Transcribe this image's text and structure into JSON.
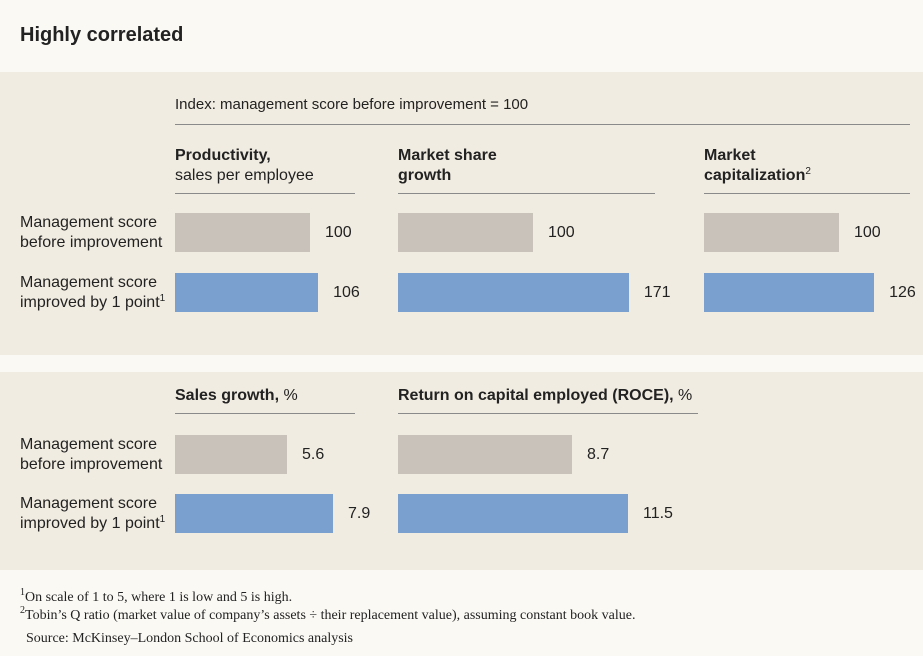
{
  "title": "Highly correlated",
  "subtitle": "Index: management score before improvement = 100",
  "footnotes": [
    {
      "mark": "1",
      "text": "On scale of 1 to 5, where 1 is low and 5 is high."
    },
    {
      "mark": "2",
      "text": "Tobin’s Q ratio (market value of company’s assets ÷ their replacement value), assuming constant book value."
    }
  ],
  "source": "Source: McKinsey–London School of Economics analysis",
  "chart_data": [
    {
      "type": "bar",
      "title": "Productivity,",
      "title_suffix": "sales per employee",
      "categories": [
        "Management score before improvement",
        "Management score improved by 1 point"
      ],
      "category_notes": [
        null,
        "1"
      ],
      "values": [
        100,
        106
      ],
      "colors": [
        "#c9c2bb",
        "#7aa0cf"
      ],
      "xlim": [
        0,
        200
      ]
    },
    {
      "type": "bar",
      "title": "Market share growth",
      "values": [
        100,
        171
      ],
      "colors": [
        "#c9c2bb",
        "#7aa0cf"
      ],
      "xlim": [
        0,
        200
      ]
    },
    {
      "type": "bar",
      "title": "Market capitalization",
      "title_note": "2",
      "values": [
        100,
        126
      ],
      "colors": [
        "#c9c2bb",
        "#7aa0cf"
      ],
      "xlim": [
        0,
        200
      ]
    },
    {
      "type": "bar",
      "title": "Sales growth,",
      "title_suffix": "%",
      "categories": [
        "Management score before improvement",
        "Management score improved by 1 point"
      ],
      "category_notes": [
        null,
        "1"
      ],
      "values": [
        5.6,
        7.9
      ],
      "colors": [
        "#c9c2bb",
        "#7aa0cf"
      ],
      "xlim": [
        0,
        15
      ]
    },
    {
      "type": "bar",
      "title": "Return on capital employed (ROCE),",
      "title_suffix": "%",
      "values": [
        8.7,
        11.5
      ],
      "colors": [
        "#c9c2bb",
        "#7aa0cf"
      ],
      "xlim": [
        0,
        15
      ]
    }
  ]
}
